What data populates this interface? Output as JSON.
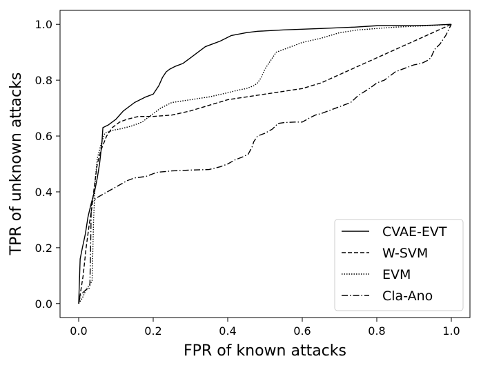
{
  "chart_data": {
    "type": "line",
    "title": "",
    "xlabel": "FPR of known attacks",
    "ylabel": "TPR of unknown attacks",
    "xlim": [
      -0.05,
      1.05
    ],
    "ylim": [
      -0.05,
      1.05
    ],
    "xticks": [
      0.0,
      0.2,
      0.4,
      0.6,
      0.8,
      1.0
    ],
    "xtick_labels": [
      "0.0",
      "0.2",
      "0.4",
      "0.6",
      "0.8",
      "1.0"
    ],
    "yticks": [
      0.0,
      0.2,
      0.4,
      0.6,
      0.8,
      1.0
    ],
    "ytick_labels": [
      "0.0",
      "0.2",
      "0.4",
      "0.6",
      "0.8",
      "1.0"
    ],
    "grid": false,
    "legend_position": "lower-right",
    "line_color": "#000000",
    "series": [
      {
        "name": "CVAE-EVT",
        "style": "solid",
        "x": [
          0.0,
          0.004,
          0.01,
          0.018,
          0.025,
          0.032,
          0.038,
          0.044,
          0.05,
          0.056,
          0.062,
          0.065,
          0.08,
          0.1,
          0.12,
          0.15,
          0.18,
          0.2,
          0.215,
          0.225,
          0.235,
          0.245,
          0.26,
          0.28,
          0.3,
          0.32,
          0.34,
          0.36,
          0.38,
          0.41,
          0.45,
          0.48,
          0.55,
          0.65,
          0.74,
          0.8,
          0.9,
          0.95,
          1.0
        ],
        "y": [
          0.0,
          0.16,
          0.2,
          0.25,
          0.31,
          0.35,
          0.38,
          0.41,
          0.45,
          0.5,
          0.57,
          0.63,
          0.64,
          0.66,
          0.69,
          0.72,
          0.74,
          0.75,
          0.78,
          0.81,
          0.83,
          0.84,
          0.85,
          0.86,
          0.88,
          0.9,
          0.92,
          0.93,
          0.94,
          0.96,
          0.97,
          0.975,
          0.98,
          0.985,
          0.99,
          0.995,
          0.995,
          0.997,
          1.0
        ]
      },
      {
        "name": "W-SVM",
        "style": "dashed",
        "x": [
          0.0,
          0.005,
          0.012,
          0.02,
          0.028,
          0.035,
          0.042,
          0.05,
          0.06,
          0.075,
          0.09,
          0.11,
          0.13,
          0.16,
          0.2,
          0.25,
          0.3,
          0.35,
          0.4,
          0.45,
          0.5,
          0.55,
          0.6,
          0.65,
          0.7,
          0.75,
          0.8,
          0.85,
          0.9,
          0.95,
          1.0
        ],
        "y": [
          0.0,
          0.04,
          0.1,
          0.2,
          0.28,
          0.34,
          0.42,
          0.5,
          0.55,
          0.6,
          0.63,
          0.65,
          0.66,
          0.67,
          0.67,
          0.675,
          0.69,
          0.71,
          0.73,
          0.74,
          0.75,
          0.76,
          0.77,
          0.79,
          0.82,
          0.85,
          0.88,
          0.91,
          0.94,
          0.97,
          1.0
        ]
      },
      {
        "name": "EVM",
        "style": "dotted",
        "x": [
          0.0,
          0.01,
          0.02,
          0.03,
          0.036,
          0.04,
          0.045,
          0.05,
          0.06,
          0.07,
          0.09,
          0.11,
          0.14,
          0.17,
          0.2,
          0.22,
          0.25,
          0.3,
          0.35,
          0.4,
          0.43,
          0.45,
          0.47,
          0.48,
          0.49,
          0.5,
          0.51,
          0.52,
          0.53,
          0.55,
          0.6,
          0.65,
          0.7,
          0.75,
          0.8,
          0.85,
          0.9,
          0.95,
          1.0
        ],
        "y": [
          0.0,
          0.02,
          0.05,
          0.07,
          0.08,
          0.3,
          0.45,
          0.52,
          0.57,
          0.61,
          0.62,
          0.625,
          0.635,
          0.65,
          0.68,
          0.7,
          0.72,
          0.73,
          0.74,
          0.755,
          0.765,
          0.77,
          0.78,
          0.79,
          0.81,
          0.84,
          0.86,
          0.88,
          0.9,
          0.91,
          0.935,
          0.95,
          0.97,
          0.98,
          0.985,
          0.99,
          0.993,
          0.996,
          1.0
        ]
      },
      {
        "name": "Cla-Ano",
        "style": "dashdot",
        "x": [
          0.0,
          0.005,
          0.012,
          0.02,
          0.026,
          0.03,
          0.032,
          0.034,
          0.04,
          0.05,
          0.07,
          0.09,
          0.11,
          0.13,
          0.15,
          0.18,
          0.21,
          0.25,
          0.3,
          0.35,
          0.38,
          0.4,
          0.42,
          0.44,
          0.455,
          0.465,
          0.47,
          0.48,
          0.5,
          0.52,
          0.535,
          0.55,
          0.58,
          0.6,
          0.62,
          0.635,
          0.65,
          0.68,
          0.71,
          0.73,
          0.75,
          0.78,
          0.8,
          0.82,
          0.85,
          0.88,
          0.9,
          0.92,
          0.935,
          0.945,
          0.955,
          0.97,
          0.985,
          1.0
        ],
        "y": [
          0.0,
          0.03,
          0.04,
          0.05,
          0.05,
          0.06,
          0.2,
          0.36,
          0.37,
          0.38,
          0.395,
          0.41,
          0.425,
          0.44,
          0.45,
          0.455,
          0.47,
          0.475,
          0.478,
          0.48,
          0.49,
          0.5,
          0.515,
          0.525,
          0.535,
          0.56,
          0.58,
          0.6,
          0.61,
          0.625,
          0.645,
          0.648,
          0.65,
          0.65,
          0.665,
          0.675,
          0.68,
          0.695,
          0.71,
          0.72,
          0.745,
          0.77,
          0.79,
          0.8,
          0.83,
          0.845,
          0.855,
          0.86,
          0.87,
          0.88,
          0.91,
          0.93,
          0.96,
          1.0
        ]
      }
    ]
  }
}
